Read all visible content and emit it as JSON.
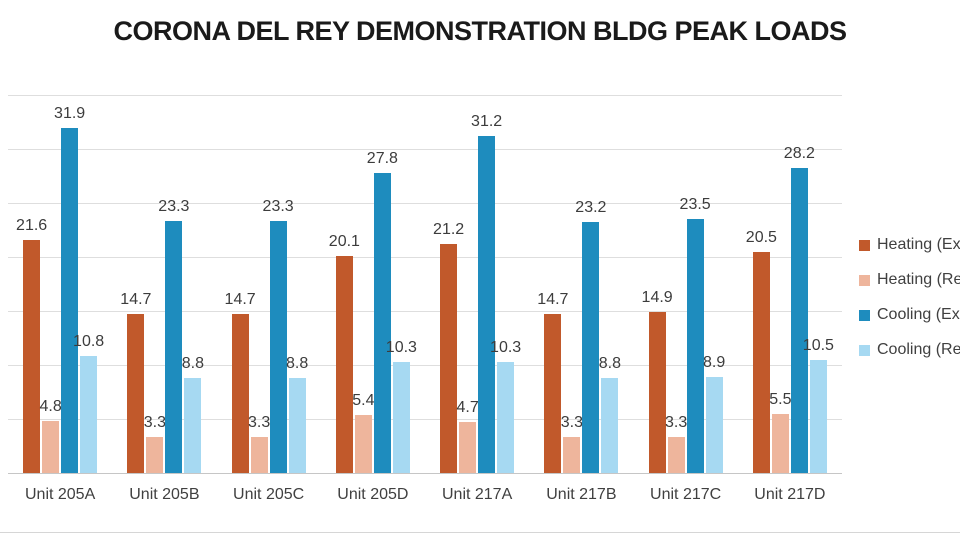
{
  "chart_data": {
    "type": "bar",
    "title": "CORONA DEL REY DEMONSTRATION BLDG PEAK LOADS",
    "categories": [
      "Unit 205A",
      "Unit 205B",
      "Unit 205C",
      "Unit 205D",
      "Unit 217A",
      "Unit 217B",
      "Unit 217C",
      "Unit 217D"
    ],
    "series": [
      {
        "name": "Heating (Ex",
        "color": "#c1592b",
        "values": [
          21.6,
          14.7,
          14.7,
          20.1,
          21.2,
          14.7,
          14.9,
          20.5
        ]
      },
      {
        "name": "Heating (Re",
        "color": "#eeb59c",
        "values": [
          4.8,
          3.3,
          3.3,
          5.4,
          4.7,
          3.3,
          3.3,
          5.5
        ]
      },
      {
        "name": "Cooling (Ex",
        "color": "#1e8cbe",
        "values": [
          31.9,
          23.3,
          23.3,
          27.8,
          31.2,
          23.2,
          23.5,
          28.2
        ]
      },
      {
        "name": "Cooling (Re",
        "color": "#a6d9f2",
        "values": [
          10.8,
          8.8,
          8.8,
          10.3,
          10.3,
          8.8,
          8.9,
          10.5
        ]
      }
    ],
    "ylim": [
      0,
      35
    ],
    "gridline_step": 5,
    "grid": true,
    "y_axis_labels_visible": false,
    "value_labels": true,
    "legend_position": "right",
    "legend_truncated_by_screen_edge": true
  },
  "colors": {
    "gridline": "#dedede",
    "baseline": "#c6c6c6",
    "value_label_text": "#3c3c3c",
    "axis_label_text": "#404040",
    "title_text": "#1a1a1a"
  }
}
